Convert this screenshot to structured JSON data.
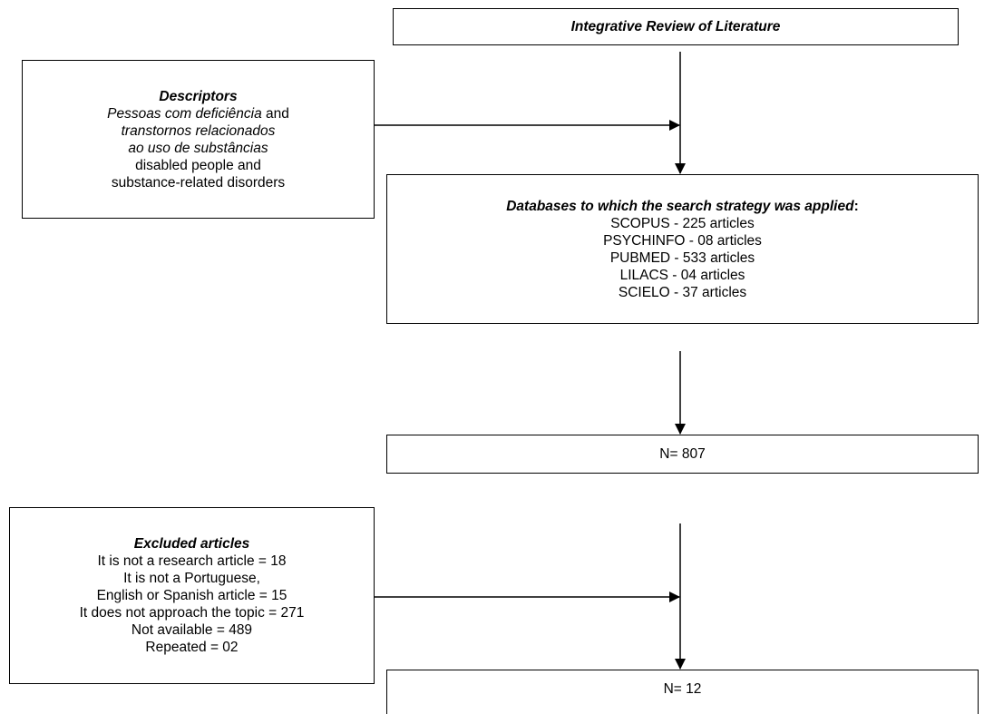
{
  "review": {
    "title": "Integrative Review of Literature"
  },
  "descriptors": {
    "heading": "Descriptors",
    "term1": "Pessoas com deficiência",
    "and1": " and",
    "term2a": "transtornos relacionados",
    "term2b": "ao uso de substâncias",
    "english1": "disabled people and",
    "english2": "substance-related disorders"
  },
  "databases": {
    "heading": "Databases to which the search strategy was applied",
    "colon": ":",
    "items": [
      "SCOPUS - 225 articles",
      "PSYCHINFO - 08 articles",
      "PUBMED - 533 articles",
      "LILACS - 04 articles",
      "SCIELO - 37 articles"
    ]
  },
  "total": {
    "label": "N= 807"
  },
  "excluded": {
    "heading": "Excluded articles",
    "lines": [
      "It is not a research article = 18",
      "It is not a Portuguese,",
      "English or Spanish article = 15",
      "It does not approach the topic = 271",
      "Not available = 489",
      "Repeated = 02"
    ]
  },
  "final": {
    "label": "N= 12"
  }
}
